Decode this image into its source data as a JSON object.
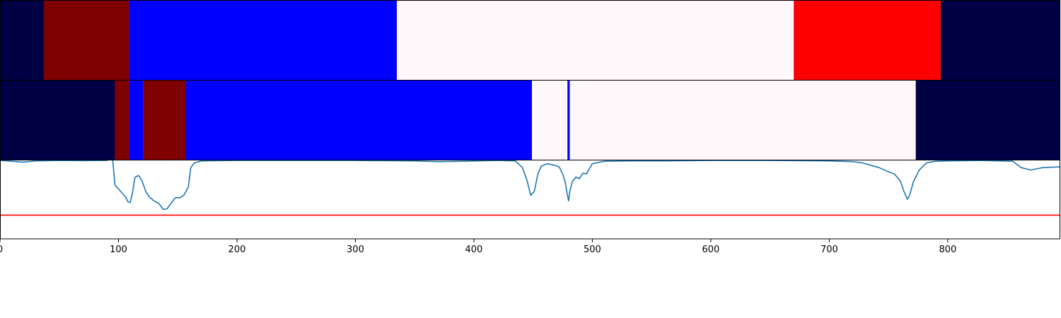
{
  "chart_data": {
    "type": "area",
    "x_axis": {
      "range": [
        0,
        895
      ],
      "ticks": [
        0,
        100,
        200,
        300,
        400,
        500,
        600,
        700,
        800
      ],
      "tick_labels": [
        "0",
        "100",
        "200",
        "300",
        "400",
        "500",
        "600",
        "700",
        "800"
      ]
    },
    "segment_rows": [
      {
        "segments": [
          {
            "start": 0,
            "end": 37,
            "color": "#000044"
          },
          {
            "start": 37,
            "end": 109,
            "color": "#7f0000"
          },
          {
            "start": 109,
            "end": 335,
            "color": "#0000ff"
          },
          {
            "start": 335,
            "end": 670,
            "color": "#fff8fb"
          },
          {
            "start": 670,
            "end": 794,
            "color": "#ff0000"
          },
          {
            "start": 794,
            "end": 895,
            "color": "#000044"
          }
        ]
      },
      {
        "segments": [
          {
            "start": 0,
            "end": 97,
            "color": "#000044"
          },
          {
            "start": 97,
            "end": 109,
            "color": "#7f0000"
          },
          {
            "start": 109,
            "end": 121,
            "color": "#0000ff"
          },
          {
            "start": 121,
            "end": 157,
            "color": "#7f0000"
          },
          {
            "start": 157,
            "end": 449,
            "color": "#0000ff"
          },
          {
            "start": 449,
            "end": 479,
            "color": "#fff8fb"
          },
          {
            "start": 479,
            "end": 481,
            "color": "#0000ff"
          },
          {
            "start": 481,
            "end": 773,
            "color": "#fff8fb"
          },
          {
            "start": 773,
            "end": 895,
            "color": "#000044"
          }
        ]
      }
    ],
    "line_series": {
      "color": "#1f77b4",
      "y_range": [
        0,
        1
      ],
      "threshold": 0.3,
      "threshold_color": "#ff0000",
      "points": [
        [
          0,
          0.99
        ],
        [
          10,
          0.98
        ],
        [
          20,
          0.97
        ],
        [
          30,
          0.985
        ],
        [
          50,
          0.99
        ],
        [
          70,
          0.988
        ],
        [
          90,
          0.99
        ],
        [
          95,
          1.02
        ],
        [
          96,
          0.85
        ],
        [
          97,
          0.68
        ],
        [
          100,
          0.63
        ],
        [
          103,
          0.58
        ],
        [
          106,
          0.53
        ],
        [
          108,
          0.47
        ],
        [
          110,
          0.46
        ],
        [
          112,
          0.6
        ],
        [
          114,
          0.78
        ],
        [
          117,
          0.8
        ],
        [
          120,
          0.73
        ],
        [
          123,
          0.6
        ],
        [
          126,
          0.53
        ],
        [
          130,
          0.48
        ],
        [
          134,
          0.45
        ],
        [
          138,
          0.37
        ],
        [
          141,
          0.38
        ],
        [
          144,
          0.44
        ],
        [
          148,
          0.52
        ],
        [
          152,
          0.52
        ],
        [
          155,
          0.55
        ],
        [
          157,
          0.6
        ],
        [
          159,
          0.66
        ],
        [
          161,
          0.9
        ],
        [
          164,
          0.96
        ],
        [
          170,
          0.985
        ],
        [
          200,
          0.99
        ],
        [
          250,
          0.99
        ],
        [
          300,
          0.99
        ],
        [
          350,
          0.985
        ],
        [
          370,
          0.975
        ],
        [
          390,
          0.98
        ],
        [
          420,
          0.99
        ],
        [
          435,
          0.985
        ],
        [
          441,
          0.9
        ],
        [
          445,
          0.73
        ],
        [
          448,
          0.55
        ],
        [
          451,
          0.6
        ],
        [
          454,
          0.82
        ],
        [
          457,
          0.92
        ],
        [
          462,
          0.95
        ],
        [
          468,
          0.93
        ],
        [
          472,
          0.91
        ],
        [
          475,
          0.82
        ],
        [
          477,
          0.72
        ],
        [
          479,
          0.55
        ],
        [
          480,
          0.48
        ],
        [
          481,
          0.6
        ],
        [
          483,
          0.72
        ],
        [
          486,
          0.78
        ],
        [
          489,
          0.76
        ],
        [
          492,
          0.83
        ],
        [
          495,
          0.82
        ],
        [
          500,
          0.95
        ],
        [
          510,
          0.98
        ],
        [
          530,
          0.985
        ],
        [
          560,
          0.985
        ],
        [
          600,
          0.99
        ],
        [
          650,
          0.99
        ],
        [
          700,
          0.985
        ],
        [
          720,
          0.975
        ],
        [
          728,
          0.96
        ],
        [
          735,
          0.93
        ],
        [
          742,
          0.9
        ],
        [
          748,
          0.86
        ],
        [
          755,
          0.82
        ],
        [
          760,
          0.73
        ],
        [
          763,
          0.6
        ],
        [
          766,
          0.5
        ],
        [
          768,
          0.56
        ],
        [
          771,
          0.72
        ],
        [
          776,
          0.87
        ],
        [
          782,
          0.96
        ],
        [
          790,
          0.98
        ],
        [
          800,
          0.985
        ],
        [
          830,
          0.99
        ],
        [
          855,
          0.98
        ],
        [
          862,
          0.9
        ],
        [
          870,
          0.87
        ],
        [
          880,
          0.9
        ],
        [
          895,
          0.91
        ]
      ]
    }
  }
}
